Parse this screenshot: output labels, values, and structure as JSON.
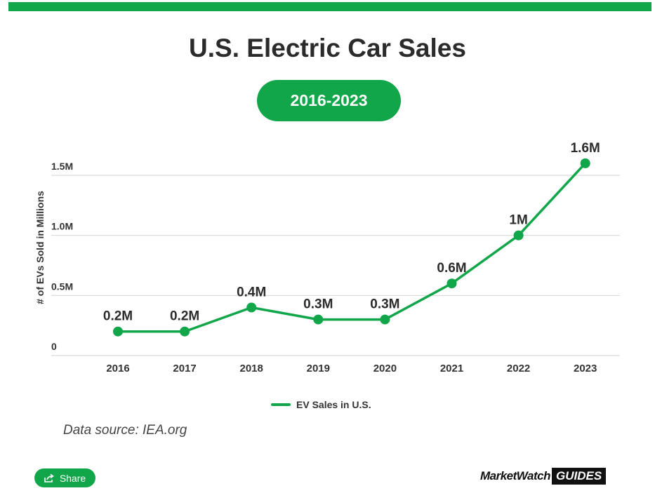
{
  "header": {
    "title": "U.S. Electric Car Sales",
    "subtitle": "2016-2023",
    "accent_color": "#12a64a"
  },
  "chart_data": {
    "type": "line",
    "x": [
      "2016",
      "2017",
      "2018",
      "2019",
      "2020",
      "2021",
      "2022",
      "2023"
    ],
    "series": [
      {
        "name": "EV Sales in U.S.",
        "values": [
          0.2,
          0.2,
          0.4,
          0.3,
          0.3,
          0.6,
          1.0,
          1.6
        ],
        "labels": [
          "0.2M",
          "0.2M",
          "0.4M",
          "0.3M",
          "0.3M",
          "0.6M",
          "1M",
          "1.6M"
        ],
        "color": "#12a64a"
      }
    ],
    "ylabel": "# of EVs Sold in Millions",
    "yticks": [
      0,
      0.5,
      1.0,
      1.5
    ],
    "ytick_labels": [
      "0",
      "0.5M",
      "1.0M",
      "1.5M"
    ],
    "ylim": [
      0,
      1.5
    ],
    "grid": true,
    "legend": "bottom-center"
  },
  "footer": {
    "source": "Data source: IEA.org",
    "share_label": "Share",
    "share_icon": "share-icon",
    "logo_main": "MarketWatch",
    "logo_badge": "GUIDES"
  }
}
